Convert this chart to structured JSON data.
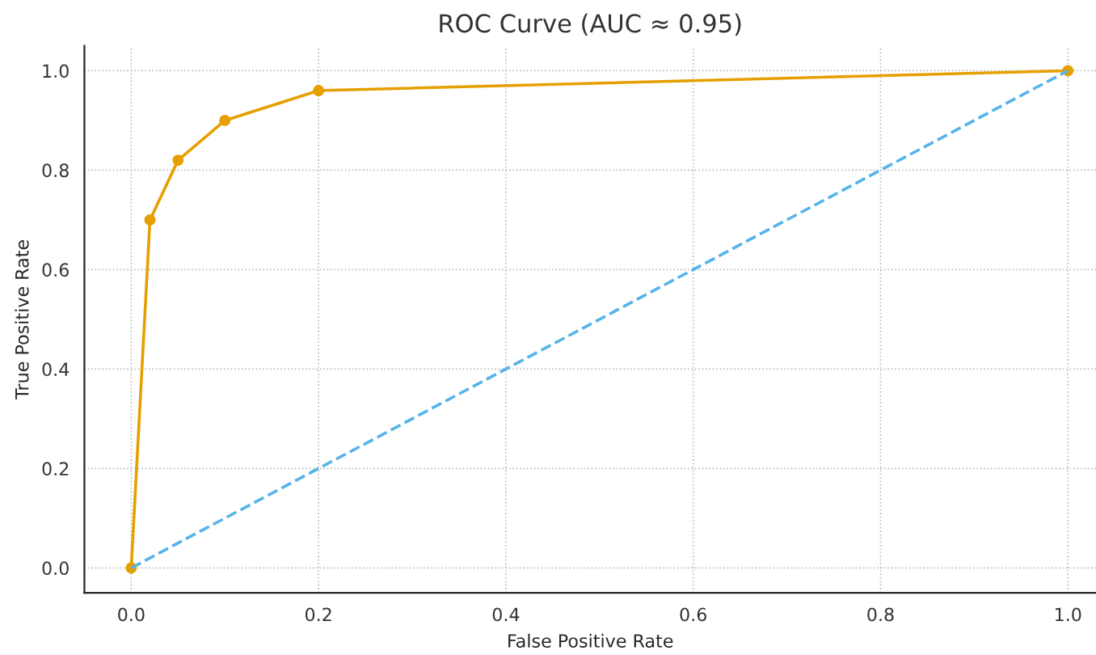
{
  "chart_data": {
    "type": "line",
    "title": "ROC Curve (AUC ≈ 0.95)",
    "xlabel": "False Positive Rate",
    "ylabel": "True Positive Rate",
    "series": [
      {
        "color": "#e69f00",
        "x": [
          0,
          0.02,
          0.05,
          0.1,
          0.2,
          1.0
        ],
        "values": [
          0,
          0.7,
          0.82,
          0.9,
          0.96,
          1.0
        ],
        "marker": "circle",
        "line_style": "solid"
      },
      {
        "color": "#56b4e9",
        "x": [
          0,
          1.0
        ],
        "values": [
          0,
          1.0
        ],
        "marker": "none",
        "line_style": "dashed"
      }
    ],
    "xlim": [
      -0.05,
      1.03
    ],
    "ylim": [
      -0.05,
      1.05
    ],
    "xticks": [
      {
        "value": 0,
        "label": "0.0"
      },
      0.2,
      0.4,
      0.6,
      0.8,
      {
        "value": 1,
        "label": "1.0"
      }
    ],
    "yticks": [
      {
        "value": 0,
        "label": "0.0"
      },
      0.2,
      0.4,
      0.6,
      0.8,
      {
        "value": 1,
        "label": "1.0"
      }
    ],
    "grid": true
  }
}
